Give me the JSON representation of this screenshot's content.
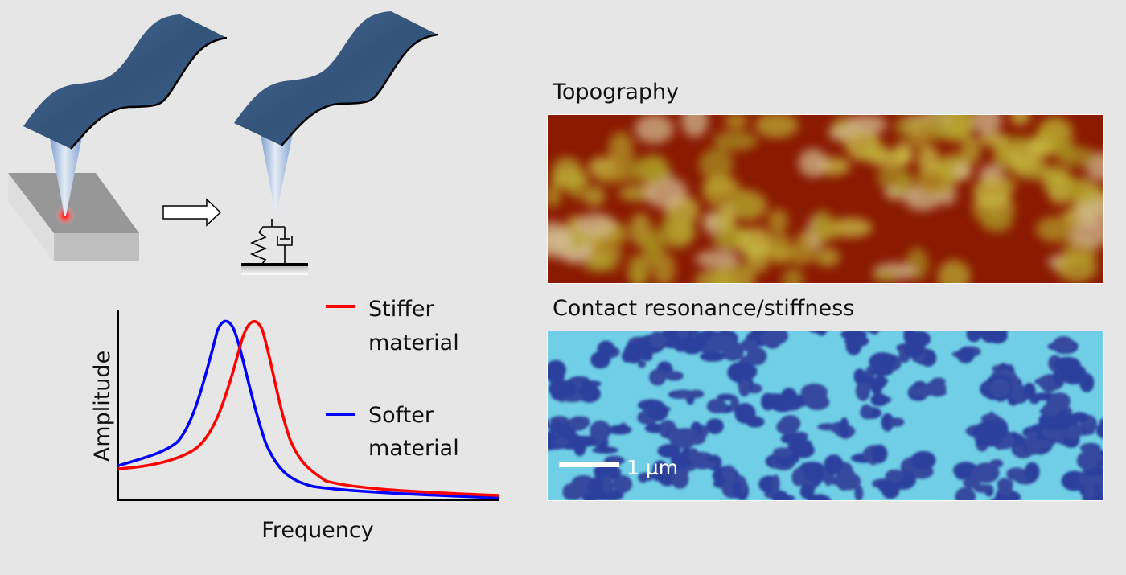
{
  "panels": {
    "topography_title": "Topography",
    "stiffness_title": "Contact resonance/stiffness",
    "scale_bar_label": "1 µm"
  },
  "plot": {
    "y_label": "Amplitude",
    "x_label": "Frequency",
    "legend": [
      {
        "line1": "Stiffer",
        "line2": "material",
        "color": "#ff0000"
      },
      {
        "line1": "Softer",
        "line2": "material",
        "color": "#0000ff"
      }
    ]
  },
  "colors": {
    "background": "#e6e6e6",
    "cantilever": "#3d5f8a",
    "topography_low": "#7a0a00",
    "topography_high": "#c8c040",
    "stiffness_light": "#6fd0e8",
    "stiffness_dark": "#2a3c9a"
  }
}
